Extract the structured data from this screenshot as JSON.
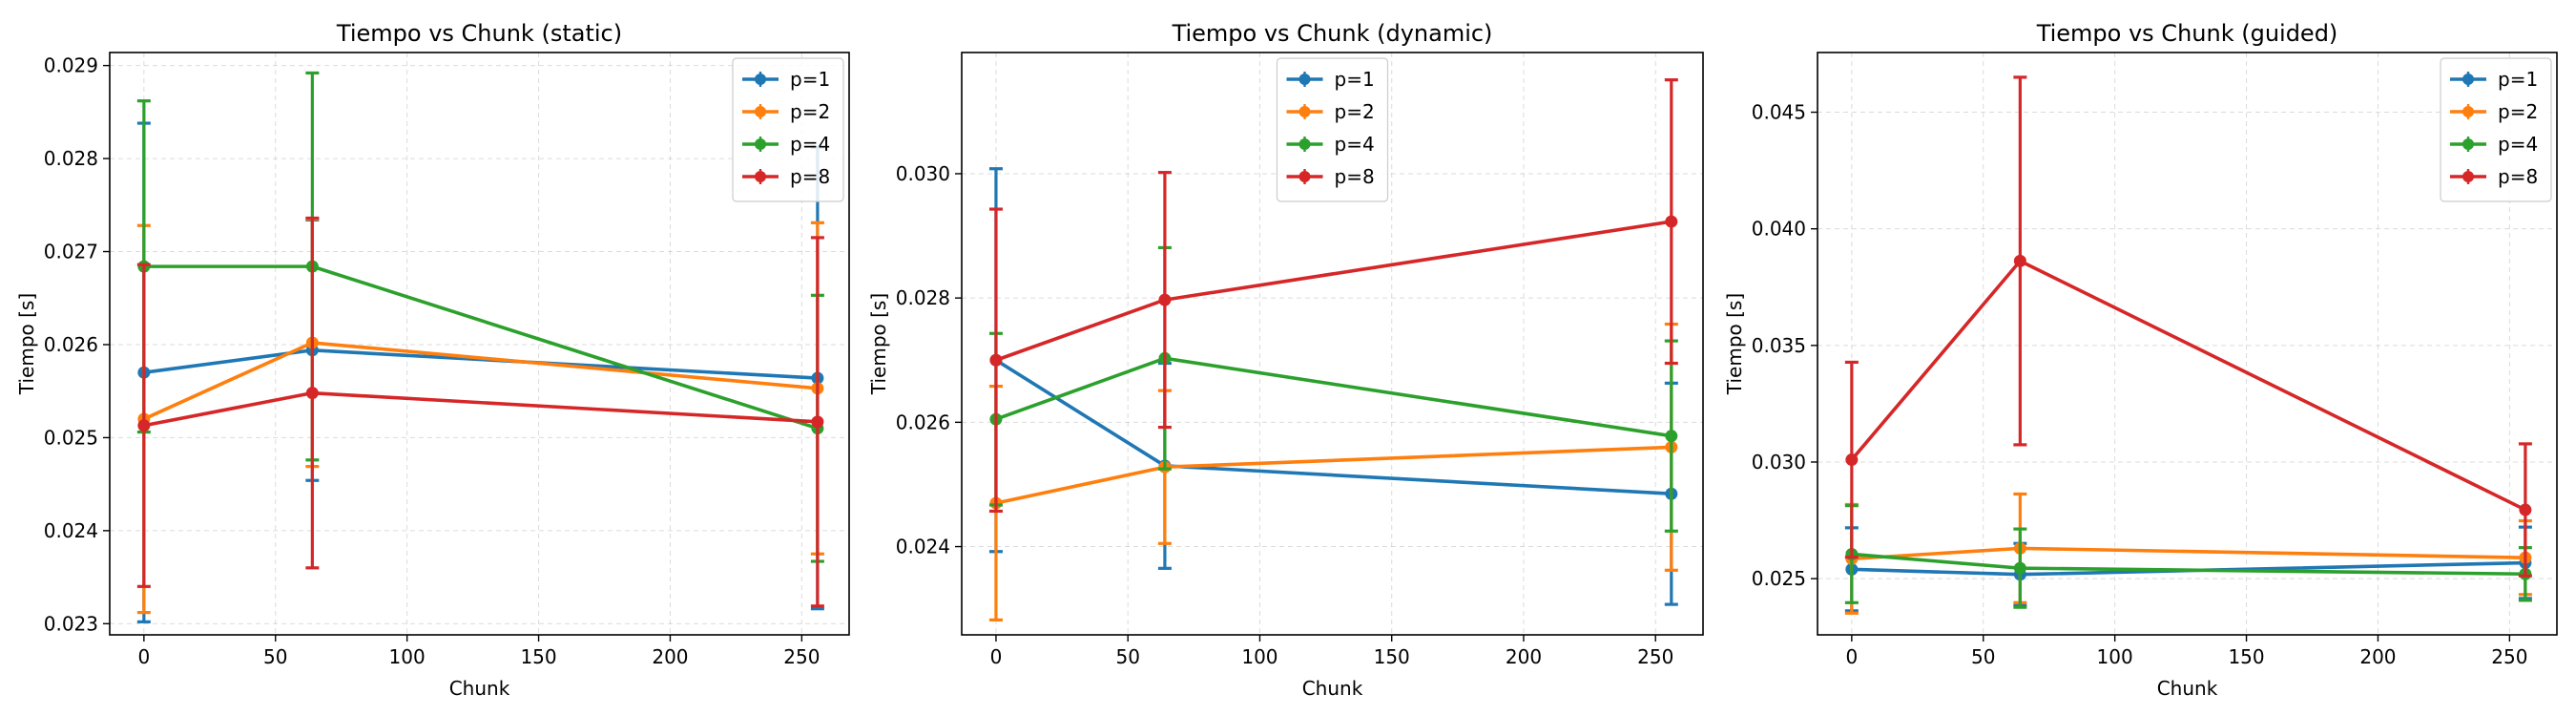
{
  "chart_data": [
    {
      "type": "line",
      "title": "Tiempo vs Chunk (static)",
      "xlabel": "Chunk",
      "ylabel": "Tiempo [s]",
      "x": [
        0,
        64,
        256
      ],
      "xlim": [
        -13,
        268
      ],
      "ylim": [
        0.02288,
        0.02914
      ],
      "xticks": [
        0,
        50,
        100,
        150,
        200,
        250
      ],
      "yticks": [
        0.023,
        0.024,
        0.025,
        0.026,
        0.027,
        0.028,
        0.029
      ],
      "ytick_labels": [
        "0.023",
        "0.024",
        "0.025",
        "0.026",
        "0.027",
        "0.028",
        "0.029"
      ],
      "grid": true,
      "legend_position": "upper right",
      "series": [
        {
          "name": "p=1",
          "color": "#1f77b4",
          "values": [
            0.0257,
            0.02594,
            0.02564
          ],
          "error": [
            0.00268,
            0.0014,
            0.00248
          ]
        },
        {
          "name": "p=2",
          "color": "#ff7f0e",
          "values": [
            0.0252,
            0.02602,
            0.02553
          ],
          "error": [
            0.00208,
            0.00133,
            0.00178
          ]
        },
        {
          "name": "p=4",
          "color": "#2ca02c",
          "values": [
            0.02684,
            0.02684,
            0.0251
          ],
          "error": [
            0.00178,
            0.00208,
            0.00143
          ]
        },
        {
          "name": "p=8",
          "color": "#d62728",
          "values": [
            0.02513,
            0.02548,
            0.02517
          ],
          "error": [
            0.00173,
            0.00188,
            0.00198
          ]
        }
      ]
    },
    {
      "type": "line",
      "title": "Tiempo vs Chunk (dynamic)",
      "xlabel": "Chunk",
      "ylabel": "Tiempo [s]",
      "x": [
        0,
        64,
        256
      ],
      "xlim": [
        -13,
        268
      ],
      "ylim": [
        0.02258,
        0.03195
      ],
      "xticks": [
        0,
        50,
        100,
        150,
        200,
        250
      ],
      "yticks": [
        0.024,
        0.026,
        0.028,
        0.03
      ],
      "ytick_labels": [
        "0.024",
        "0.026",
        "0.028",
        "0.030"
      ],
      "grid": true,
      "legend_position": "upper center",
      "series": [
        {
          "name": "p=1",
          "color": "#1f77b4",
          "values": [
            0.027,
            0.0253,
            0.02485
          ],
          "error": [
            0.00308,
            0.00165,
            0.00178
          ]
        },
        {
          "name": "p=2",
          "color": "#ff7f0e",
          "values": [
            0.0247,
            0.02528,
            0.0256
          ],
          "error": [
            0.00188,
            0.00123,
            0.00198
          ]
        },
        {
          "name": "p=4",
          "color": "#2ca02c",
          "values": [
            0.02605,
            0.02703,
            0.02578
          ],
          "error": [
            0.00138,
            0.00178,
            0.00153
          ]
        },
        {
          "name": "p=8",
          "color": "#d62728",
          "values": [
            0.027,
            0.02797,
            0.02923
          ],
          "error": [
            0.00243,
            0.00205,
            0.00228
          ]
        }
      ]
    },
    {
      "type": "line",
      "title": "Tiempo vs Chunk (guided)",
      "xlabel": "Chunk",
      "ylabel": "Tiempo [s]",
      "x": [
        0,
        64,
        256
      ],
      "xlim": [
        -13,
        268
      ],
      "ylim": [
        0.02259,
        0.04756
      ],
      "xticks": [
        0,
        50,
        100,
        150,
        200,
        250
      ],
      "yticks": [
        0.025,
        0.03,
        0.035,
        0.04,
        0.045
      ],
      "ytick_labels": [
        "0.025",
        "0.030",
        "0.035",
        "0.040",
        "0.045"
      ],
      "grid": true,
      "legend_position": "upper right",
      "series": [
        {
          "name": "p=1",
          "color": "#1f77b4",
          "values": [
            0.0254,
            0.02518,
            0.02568
          ],
          "error": [
            0.00178,
            0.00133,
            0.00153
          ]
        },
        {
          "name": "p=2",
          "color": "#ff7f0e",
          "values": [
            0.02585,
            0.0263,
            0.0259
          ],
          "error": [
            0.00233,
            0.00233,
            0.00158
          ]
        },
        {
          "name": "p=4",
          "color": "#2ca02c",
          "values": [
            0.02605,
            0.02545,
            0.0252
          ],
          "error": [
            0.00208,
            0.00168,
            0.00113
          ]
        },
        {
          "name": "p=8",
          "color": "#d62728",
          "values": [
            0.0301,
            0.03862,
            0.02795
          ],
          "error": [
            0.00418,
            0.00788,
            0.00283
          ]
        }
      ]
    }
  ]
}
